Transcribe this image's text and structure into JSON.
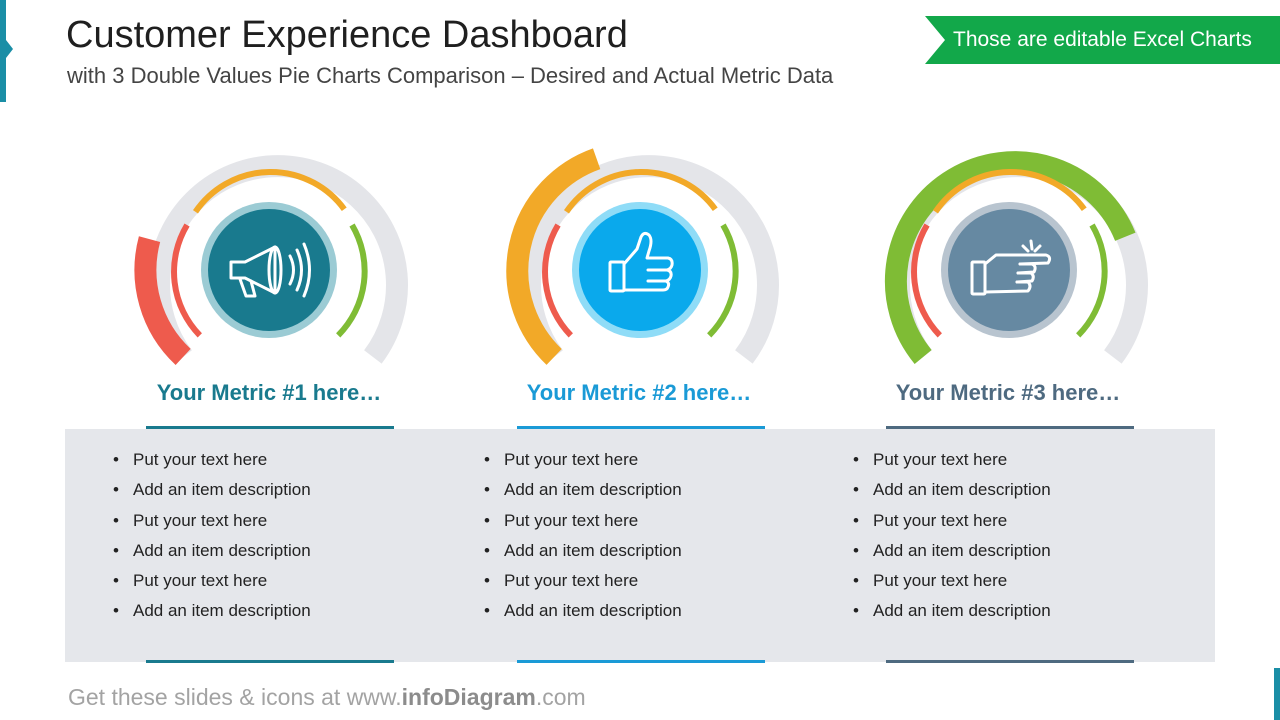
{
  "header": {
    "title": "Customer Experience Dashboard",
    "subtitle": "with 3 Double Values Pie Charts Comparison – Desired and Actual Metric Data",
    "ribbon": "Those are editable Excel Charts"
  },
  "colors": {
    "accent": "#1a8ea6",
    "ribbon": "#12a84a",
    "ring_red": "#ee5b4d",
    "ring_orange": "#f2a928",
    "ring_green": "#7fbc35",
    "track": "#e4e5e9"
  },
  "metrics": [
    {
      "title": "Your Metric #1 here…",
      "color": "#197a8e",
      "icon": "megaphone-icon",
      "outer_value": 0.17,
      "outer_color": "#ee5b4d",
      "items": [
        "Put your text here",
        "Add an item description",
        "Put your text here",
        "Add an item description",
        "Put your text here",
        "Add an item description"
      ]
    },
    {
      "title": "Your Metric #2 here…",
      "color": "#1a9ad6",
      "icon": "thumbs-up-icon",
      "outer_value": 0.41,
      "outer_color": "#f2a928",
      "items": [
        "Put your text here",
        "Add an item description",
        "Put your text here",
        "Add an item description",
        "Put your text here",
        "Add an item description"
      ]
    },
    {
      "title": "Your Metric #3 here…",
      "color": "#4e6a80",
      "icon": "pointing-hand-icon",
      "outer_value": 0.69,
      "outer_color": "#7fbc35",
      "items": [
        "Put your text here",
        "Add an item description",
        "Put your text here",
        "Add an item description",
        "Put your text here",
        "Add an item description"
      ]
    }
  ],
  "footer": {
    "prefix": "Get these slides & icons at www.",
    "brand": "infoDiagram",
    "suffix": ".com"
  }
}
